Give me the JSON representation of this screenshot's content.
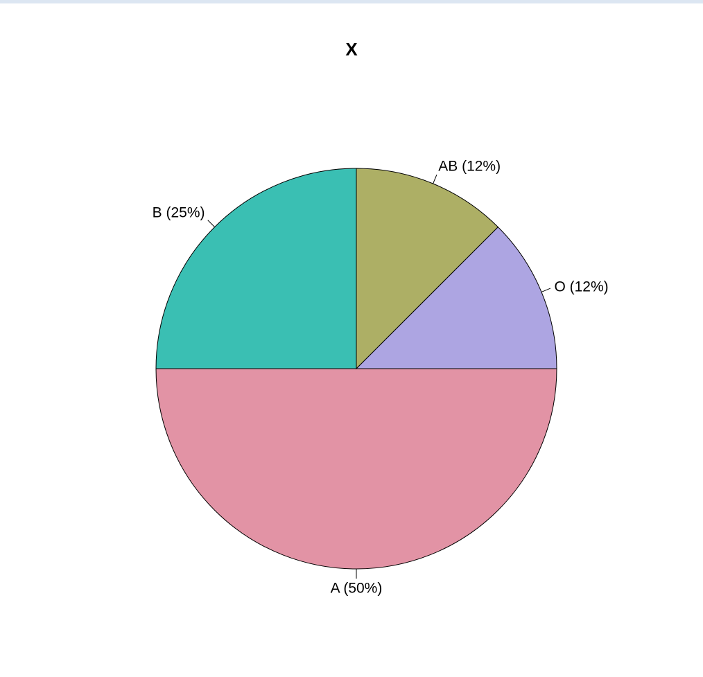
{
  "chart_data": {
    "type": "pie",
    "title": "X",
    "start_angle_degrees": 0,
    "direction": "clockwise",
    "slices": [
      {
        "name": "A",
        "value": 50,
        "label": "A (50%)",
        "color": "#e293a5"
      },
      {
        "name": "B",
        "value": 25,
        "label": "B (25%)",
        "color": "#3abfb3"
      },
      {
        "name": "AB",
        "value": 12.5,
        "label": "AB (12%)",
        "color": "#adaf65"
      },
      {
        "name": "O",
        "value": 12.5,
        "label": "O (12%)",
        "color": "#ada5e2"
      }
    ]
  }
}
